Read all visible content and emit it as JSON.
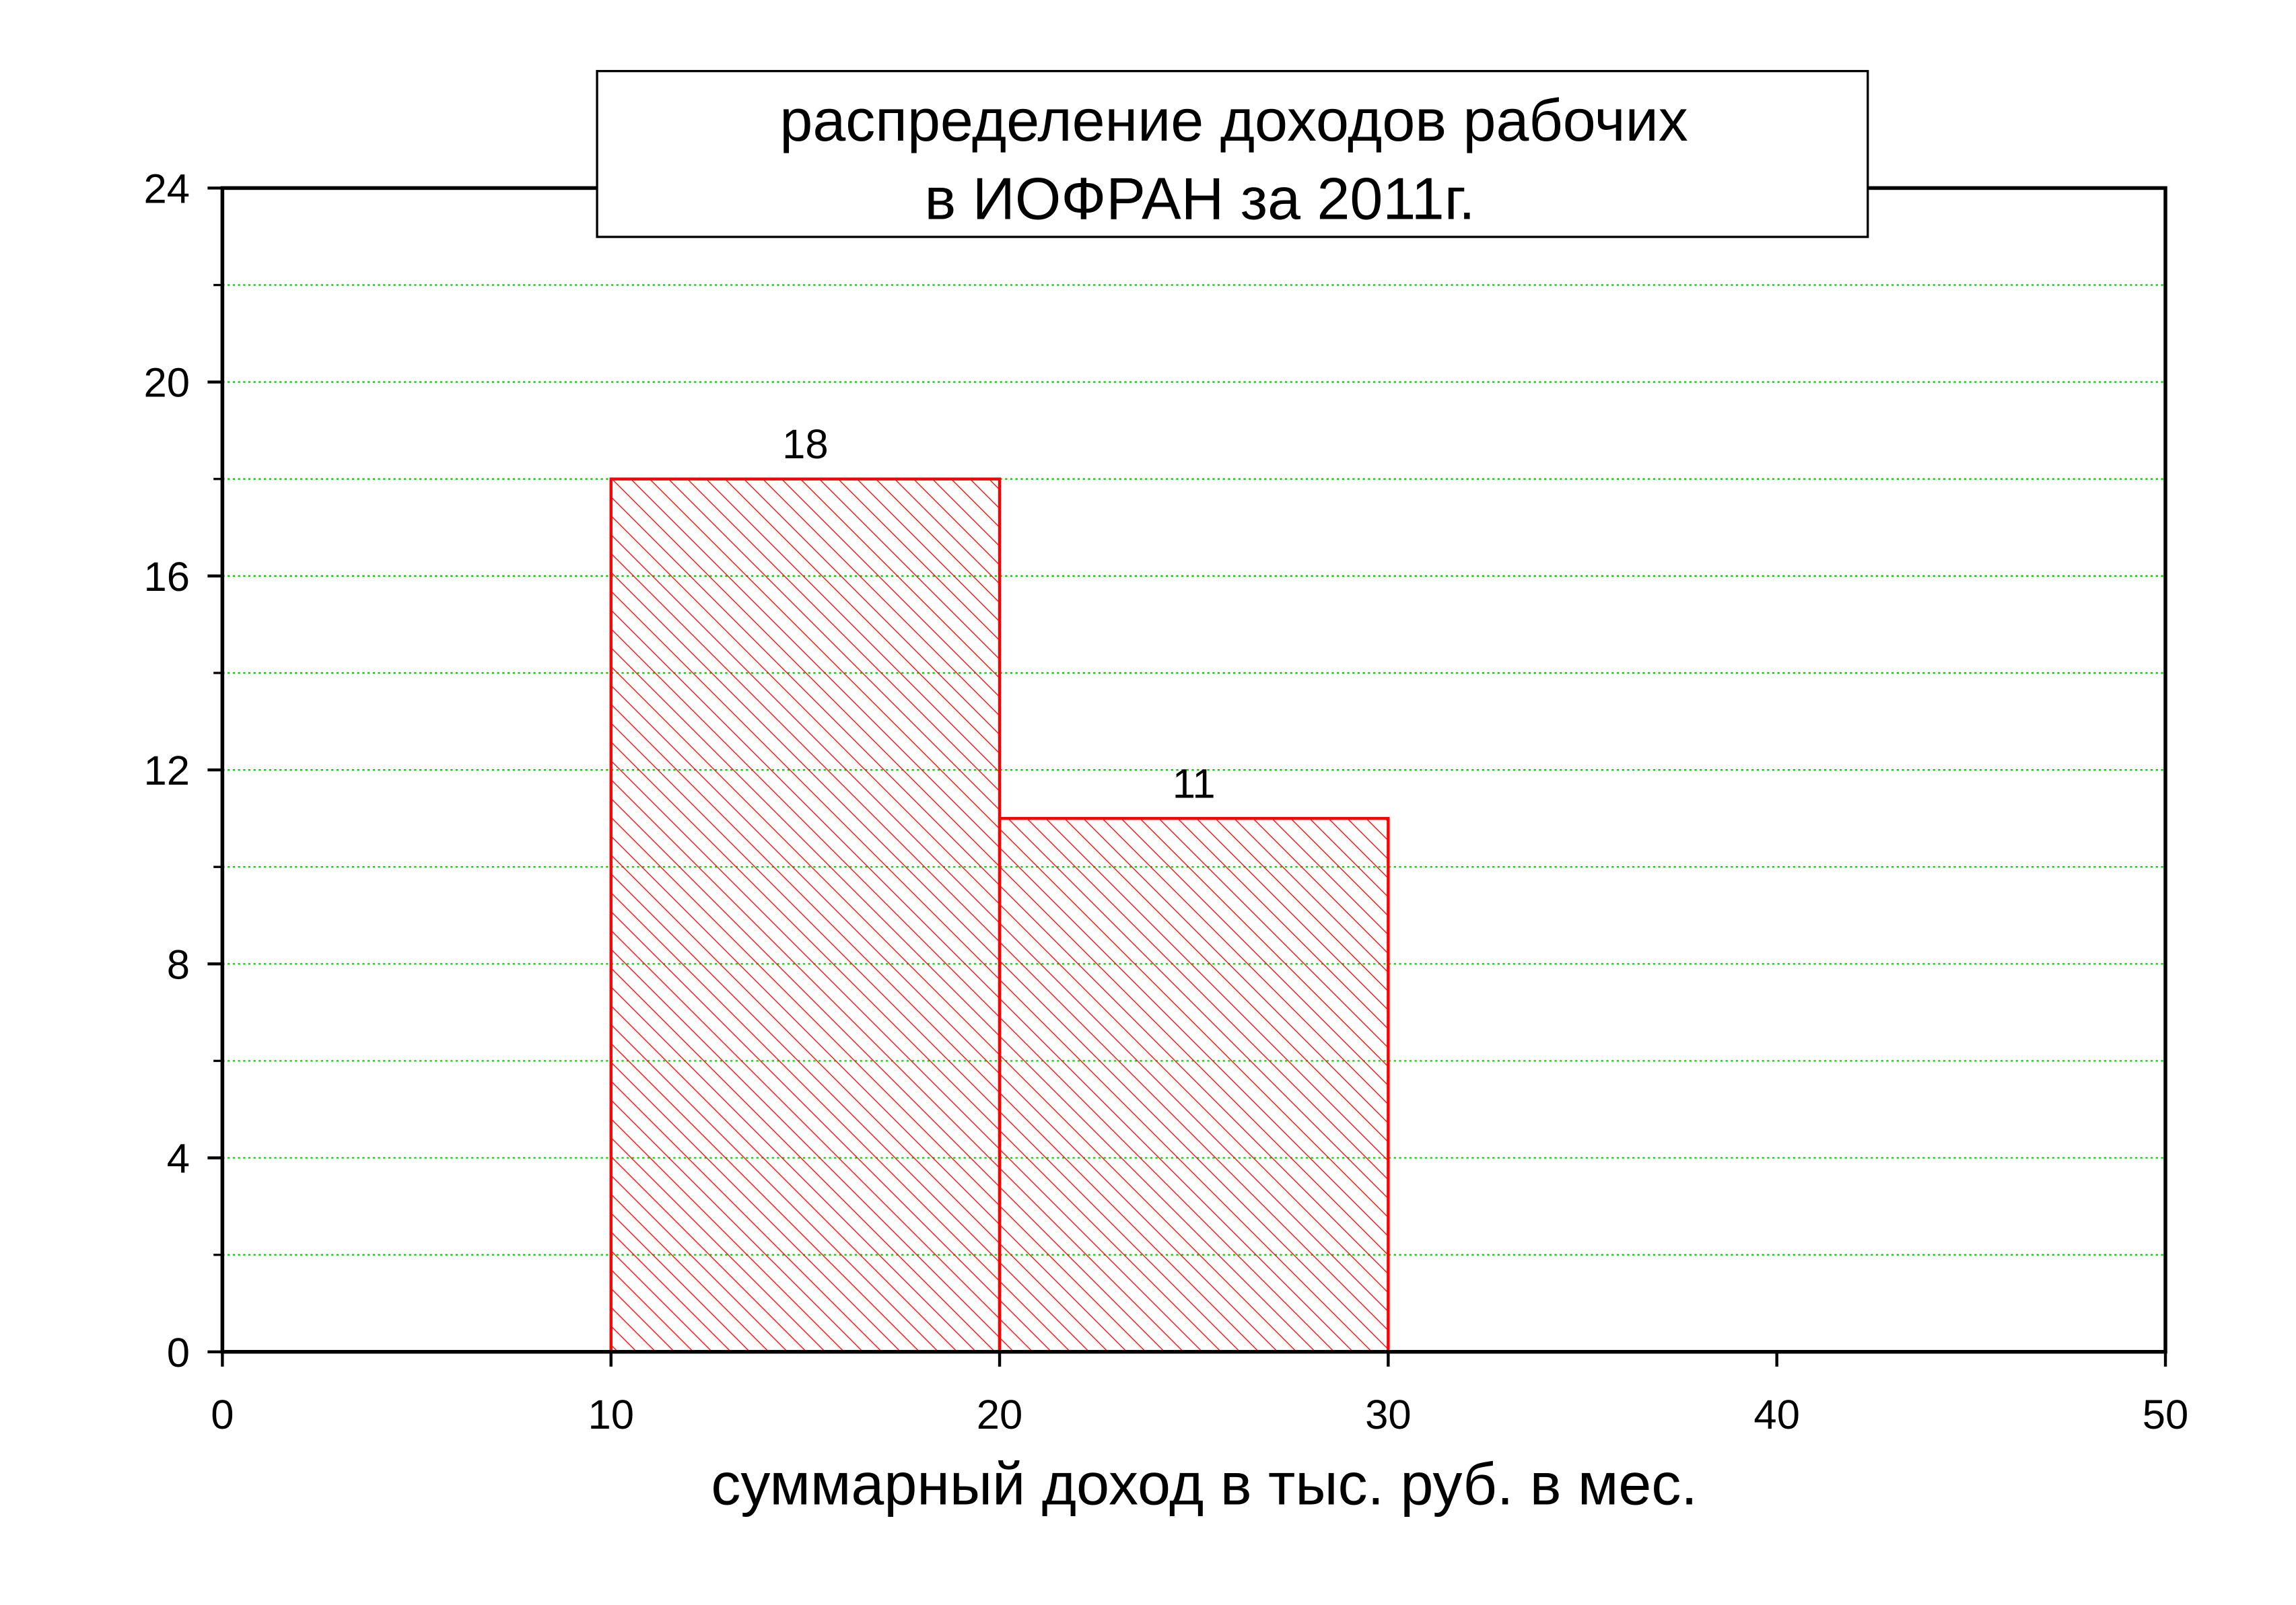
{
  "chart_data": {
    "type": "histogram",
    "title": [
      "распределение доходов рабочих",
      "в ИОФРАН за  2011г."
    ],
    "x_label": "суммарный доход в тыс. руб. в мес.",
    "bins": [
      10,
      20,
      30
    ],
    "values": [
      18,
      11
    ],
    "color": "#ff0000",
    "xlim": [
      0,
      50
    ],
    "xticks": [
      0,
      10,
      20,
      30,
      40,
      50
    ],
    "ylim": [
      0,
      24
    ],
    "yticks": [
      0,
      4,
      8,
      12,
      16,
      20,
      24
    ],
    "grid": true,
    "grid_color": "#00cc00"
  }
}
